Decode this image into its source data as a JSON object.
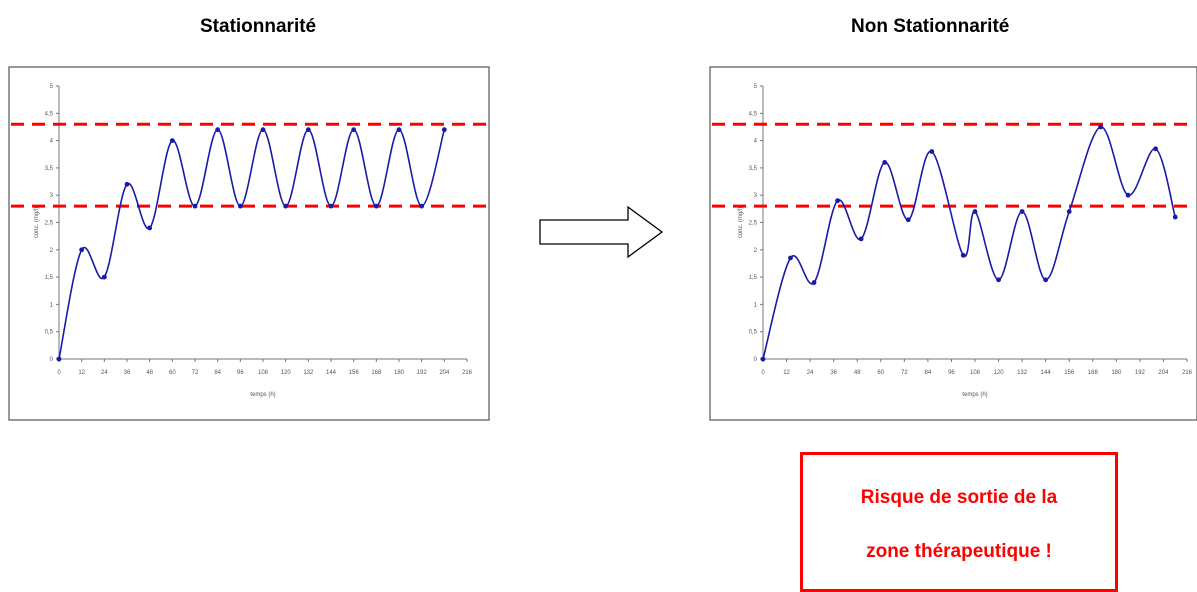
{
  "titles": {
    "left": "Stationnarité",
    "right": "Non Stationnarité"
  },
  "warning": {
    "line1": "Risque de sortie de la",
    "line2": "zone thérapeutique !"
  },
  "colors": {
    "curve": "#1a1aa8",
    "threshold": "#ff0000",
    "frame": "#555555",
    "warning": "#ff0000"
  },
  "arrow_icon": "right-arrow-icon",
  "chart_data": [
    {
      "type": "line",
      "title": "Stationnarité",
      "xlabel": "temps (h)",
      "ylabel": "conc. (mg/l)",
      "xlim": [
        0,
        216
      ],
      "ylim": [
        0,
        5
      ],
      "x_ticks": [
        0,
        12,
        24,
        36,
        48,
        60,
        72,
        84,
        96,
        108,
        120,
        132,
        144,
        156,
        168,
        180,
        192,
        204,
        216
      ],
      "y_ticks": [
        0,
        0.5,
        1,
        1.5,
        2,
        2.5,
        3,
        3.5,
        4,
        4.5,
        5
      ],
      "thresholds": [
        4.3,
        2.8
      ],
      "series": [
        {
          "x": [
            0,
            12,
            24,
            36,
            48,
            60,
            72,
            84,
            96,
            108,
            120,
            132,
            144,
            156,
            168,
            180,
            192,
            204
          ],
          "y": [
            0,
            2.0,
            1.5,
            3.2,
            2.4,
            4.0,
            2.8,
            4.2,
            2.8,
            4.2,
            2.8,
            4.2,
            2.8,
            4.2,
            2.8,
            4.2,
            2.8,
            4.2
          ]
        }
      ]
    },
    {
      "type": "line",
      "title": "Non Stationnarité",
      "xlabel": "temps (h)",
      "ylabel": "conc. (mg/l)",
      "xlim": [
        0,
        216
      ],
      "ylim": [
        0,
        5
      ],
      "x_ticks": [
        0,
        12,
        24,
        36,
        48,
        60,
        72,
        84,
        96,
        108,
        120,
        132,
        144,
        156,
        168,
        180,
        192,
        204,
        216
      ],
      "y_ticks": [
        0,
        0.5,
        1,
        1.5,
        2,
        2.5,
        3,
        3.5,
        4,
        4.5,
        5
      ],
      "thresholds": [
        4.3,
        2.8
      ],
      "series": [
        {
          "x": [
            0,
            14,
            26,
            38,
            50,
            62,
            74,
            86,
            102,
            108,
            120,
            132,
            144,
            156,
            172,
            186,
            200,
            210
          ],
          "y": [
            0,
            1.85,
            1.4,
            2.9,
            2.2,
            3.6,
            2.55,
            3.8,
            1.9,
            2.7,
            1.45,
            2.7,
            1.45,
            2.7,
            4.25,
            3.0,
            3.85,
            2.6
          ]
        }
      ]
    }
  ]
}
